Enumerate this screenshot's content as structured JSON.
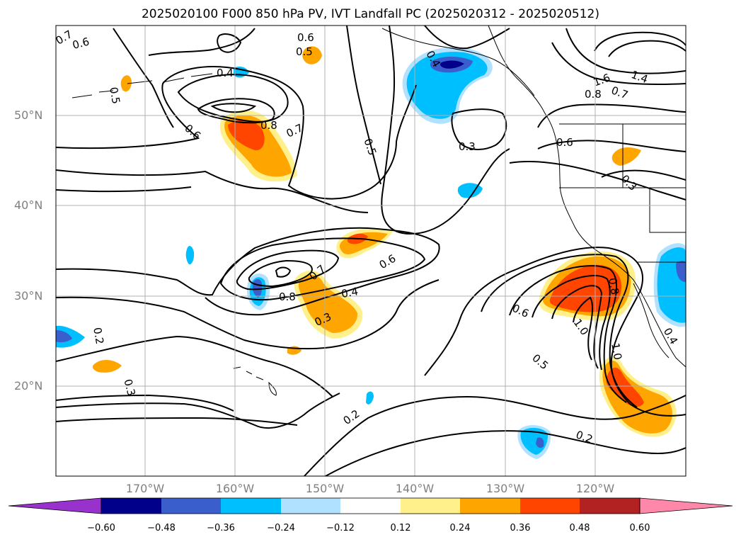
{
  "title": "2025020100 F000 850 hPa PV, IVT Landfall PC (2025020312 - 2025020512)",
  "lat_labels": [
    "50°N",
    "40°N",
    "30°N",
    "20°N"
  ],
  "lon_labels": [
    "170°W",
    "160°W",
    "150°W",
    "140°W",
    "130°W",
    "120°W"
  ],
  "contour_labels": [
    "0.7",
    "0.6",
    "0.5",
    "0.6",
    "0.5",
    "0.4",
    "0.8",
    "0.7",
    "0.6",
    "0.5",
    "0.4",
    "0.3",
    "1.6",
    "1.4",
    "0.8",
    "0.7",
    "0.3",
    "0.6",
    "0.7",
    "0.8",
    "0.6",
    "0.4",
    "0.3",
    "0.2",
    "0.3",
    "0.6",
    "1.0",
    "0.8",
    "0.5",
    "1.0",
    "0.4",
    "0.2",
    "0.2"
  ],
  "colorbar": {
    "ticks": [
      "−0.60",
      "−0.48",
      "−0.36",
      "−0.24",
      "−0.12",
      "0.12",
      "0.24",
      "0.36",
      "0.48",
      "0.60"
    ],
    "colors": [
      "#9932cc",
      "#00008b",
      "#3a5fcd",
      "#00bfff",
      "#b0e2ff",
      "#ffffff",
      "#fff08c",
      "#ffa500",
      "#ff4500",
      "#b22222",
      "#ff88aa"
    ]
  }
}
